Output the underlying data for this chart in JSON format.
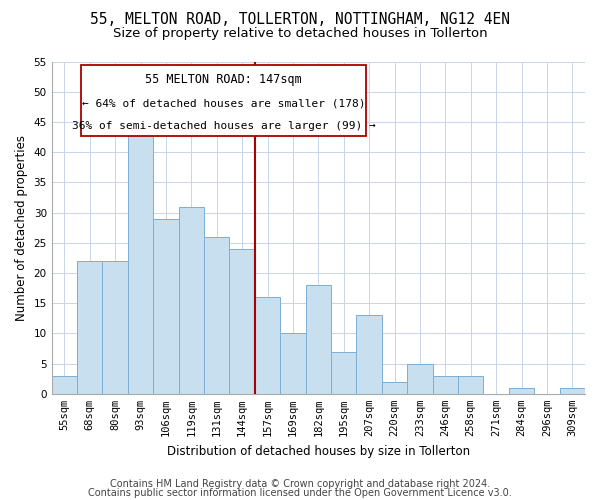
{
  "title1": "55, MELTON ROAD, TOLLERTON, NOTTINGHAM, NG12 4EN",
  "title2": "Size of property relative to detached houses in Tollerton",
  "xlabel": "Distribution of detached houses by size in Tollerton",
  "ylabel": "Number of detached properties",
  "bin_labels": [
    "55sqm",
    "68sqm",
    "80sqm",
    "93sqm",
    "106sqm",
    "119sqm",
    "131sqm",
    "144sqm",
    "157sqm",
    "169sqm",
    "182sqm",
    "195sqm",
    "207sqm",
    "220sqm",
    "233sqm",
    "246sqm",
    "258sqm",
    "271sqm",
    "284sqm",
    "296sqm",
    "309sqm"
  ],
  "bar_values": [
    3,
    22,
    22,
    43,
    29,
    31,
    26,
    24,
    16,
    10,
    18,
    7,
    13,
    2,
    5,
    3,
    3,
    0,
    1,
    0,
    1
  ],
  "bar_color": "#c8dff0",
  "bar_edge_color": "#7bafd4",
  "vline_x": 7.5,
  "vline_color": "#aa0000",
  "annotation_title": "55 MELTON ROAD: 147sqm",
  "annotation_line1": "← 64% of detached houses are smaller (178)",
  "annotation_line2": "36% of semi-detached houses are larger (99) →",
  "footer1": "Contains HM Land Registry data © Crown copyright and database right 2024.",
  "footer2": "Contains public sector information licensed under the Open Government Licence v3.0.",
  "ylim": [
    0,
    55
  ],
  "yticks": [
    0,
    5,
    10,
    15,
    20,
    25,
    30,
    35,
    40,
    45,
    50,
    55
  ],
  "bg_color": "#ffffff",
  "grid_color": "#c8d4e8",
  "title1_fontsize": 10.5,
  "title2_fontsize": 9.5,
  "axis_label_fontsize": 8.5,
  "tick_fontsize": 7.5,
  "annot_fontsize": 8.5,
  "footer_fontsize": 7
}
